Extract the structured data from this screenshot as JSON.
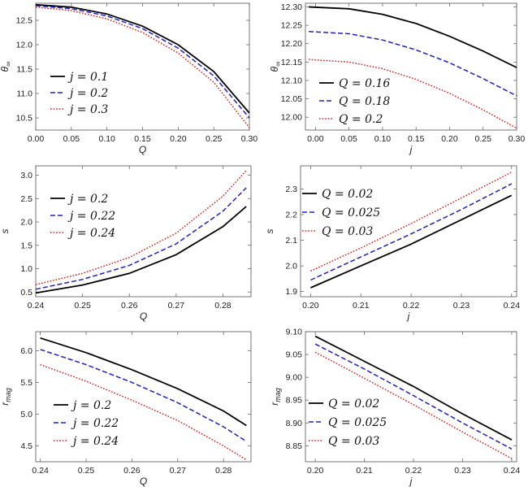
{
  "chart_data": [
    {
      "type": "line",
      "xlabel": "Q",
      "ylabel": "θ∞",
      "xlim": [
        0.0,
        0.3
      ],
      "ylim": [
        10.25,
        12.85
      ],
      "xticks": [
        "0.00",
        "0.05",
        "0.10",
        "0.15",
        "0.20",
        "0.25",
        "0.30"
      ],
      "yticks": [
        "10.5",
        "11.0",
        "11.5",
        "12.0",
        "12.5"
      ],
      "legend_position": "bottom-left",
      "series": [
        {
          "name": "j = 0.1",
          "color": "#000000",
          "style": "solid",
          "x": [
            0.0,
            0.05,
            0.1,
            0.15,
            0.2,
            0.25,
            0.3
          ],
          "y": [
            12.82,
            12.77,
            12.63,
            12.38,
            12.0,
            11.45,
            10.6
          ]
        },
        {
          "name": "j = 0.2",
          "color": "#1f1fcc",
          "style": "dashed",
          "x": [
            0.0,
            0.05,
            0.1,
            0.15,
            0.2,
            0.25,
            0.3
          ],
          "y": [
            12.8,
            12.74,
            12.59,
            12.33,
            11.93,
            11.36,
            10.5
          ]
        },
        {
          "name": "j = 0.3",
          "color": "#e02020",
          "style": "dotted",
          "x": [
            0.0,
            0.05,
            0.1,
            0.15,
            0.2,
            0.25,
            0.3
          ],
          "y": [
            12.77,
            12.7,
            12.53,
            12.25,
            11.83,
            11.23,
            10.3
          ]
        }
      ]
    },
    {
      "type": "line",
      "xlabel": "j",
      "ylabel": "θ∞",
      "xlim": [
        -0.015,
        0.3
      ],
      "ylim": [
        11.965,
        12.31
      ],
      "xticks": [
        "0.00",
        "0.05",
        "0.10",
        "0.15",
        "0.20",
        "0.25",
        "0.30"
      ],
      "yticks": [
        "12.00",
        "12.05",
        "12.10",
        "12.15",
        "12.20",
        "12.25",
        "12.30"
      ],
      "legend_position": "bottom-left",
      "series": [
        {
          "name": "Q = 0.16",
          "color": "#000000",
          "style": "solid",
          "x": [
            -0.01,
            0.05,
            0.1,
            0.15,
            0.2,
            0.25,
            0.3
          ],
          "y": [
            12.3,
            12.295,
            12.28,
            12.255,
            12.22,
            12.18,
            12.135
          ]
        },
        {
          "name": "Q = 0.18",
          "color": "#1f1fcc",
          "style": "dashed",
          "x": [
            -0.01,
            0.05,
            0.1,
            0.15,
            0.2,
            0.25,
            0.3
          ],
          "y": [
            12.233,
            12.227,
            12.21,
            12.183,
            12.148,
            12.105,
            12.058
          ]
        },
        {
          "name": "Q = 0.2",
          "color": "#e02020",
          "style": "dotted",
          "x": [
            -0.01,
            0.05,
            0.1,
            0.15,
            0.2,
            0.25,
            0.3
          ],
          "y": [
            12.157,
            12.15,
            12.132,
            12.103,
            12.065,
            12.02,
            11.97
          ]
        }
      ]
    },
    {
      "type": "line",
      "xlabel": "Q",
      "ylabel": "s",
      "xlim": [
        0.24,
        0.286
      ],
      "ylim": [
        0.4,
        3.2
      ],
      "xticks": [
        "0.24",
        "0.25",
        "0.26",
        "0.27",
        "0.28"
      ],
      "yticks": [
        "0.5",
        "1.0",
        "1.5",
        "2.0",
        "2.5",
        "3.0"
      ],
      "legend_position": "top-left",
      "series": [
        {
          "name": "j = 0.2",
          "color": "#000000",
          "style": "solid",
          "x": [
            0.24,
            0.25,
            0.26,
            0.27,
            0.28,
            0.285
          ],
          "y": [
            0.48,
            0.65,
            0.9,
            1.3,
            1.9,
            2.33
          ]
        },
        {
          "name": "j = 0.22",
          "color": "#1f1fcc",
          "style": "dashed",
          "x": [
            0.24,
            0.25,
            0.26,
            0.27,
            0.28,
            0.285
          ],
          "y": [
            0.56,
            0.77,
            1.07,
            1.53,
            2.23,
            2.73
          ]
        },
        {
          "name": "j = 0.24",
          "color": "#e02020",
          "style": "dotted",
          "x": [
            0.24,
            0.25,
            0.26,
            0.27,
            0.28,
            0.285
          ],
          "y": [
            0.66,
            0.9,
            1.24,
            1.76,
            2.55,
            3.1
          ]
        }
      ]
    },
    {
      "type": "line",
      "xlabel": "j",
      "ylabel": "s",
      "xlim": [
        0.198,
        0.241
      ],
      "ylim": [
        1.88,
        2.39
      ],
      "xticks": [
        "0.20",
        "0.21",
        "0.22",
        "0.23",
        "0.24"
      ],
      "yticks": [
        "1.9",
        "2.0",
        "2.1",
        "2.2",
        "2.3"
      ],
      "legend_position": "top-left",
      "series": [
        {
          "name": "Q = 0.02",
          "color": "#000000",
          "style": "solid",
          "x": [
            0.2,
            0.21,
            0.22,
            0.23,
            0.24
          ],
          "y": [
            1.915,
            2.0,
            2.085,
            2.18,
            2.275
          ]
        },
        {
          "name": "Q = 0.025",
          "color": "#1f1fcc",
          "style": "dashed",
          "x": [
            0.2,
            0.21,
            0.22,
            0.23,
            0.24
          ],
          "y": [
            1.945,
            2.035,
            2.125,
            2.22,
            2.32
          ]
        },
        {
          "name": "Q = 0.03",
          "color": "#e02020",
          "style": "dotted",
          "x": [
            0.2,
            0.21,
            0.22,
            0.23,
            0.24
          ],
          "y": [
            1.98,
            2.07,
            2.165,
            2.265,
            2.365
          ]
        }
      ]
    },
    {
      "type": "line",
      "xlabel": "Q",
      "ylabel": "r_mag",
      "xlim": [
        0.239,
        0.286
      ],
      "ylim": [
        4.25,
        6.3
      ],
      "xticks": [
        "0.24",
        "0.25",
        "0.26",
        "0.27",
        "0.28"
      ],
      "yticks": [
        "4.5",
        "5.0",
        "5.5",
        "6.0"
      ],
      "legend_position": "bottom-left",
      "series": [
        {
          "name": "j = 0.2",
          "color": "#000000",
          "style": "solid",
          "x": [
            0.24,
            0.25,
            0.26,
            0.27,
            0.28,
            0.285
          ],
          "y": [
            6.2,
            5.97,
            5.7,
            5.4,
            5.05,
            4.82
          ]
        },
        {
          "name": "j = 0.22",
          "color": "#1f1fcc",
          "style": "dashed",
          "x": [
            0.24,
            0.25,
            0.26,
            0.27,
            0.28,
            0.285
          ],
          "y": [
            6.02,
            5.78,
            5.5,
            5.18,
            4.8,
            4.57
          ]
        },
        {
          "name": "j = 0.24",
          "color": "#e02020",
          "style": "dotted",
          "x": [
            0.24,
            0.25,
            0.26,
            0.27,
            0.28,
            0.285
          ],
          "y": [
            5.78,
            5.52,
            5.22,
            4.9,
            4.5,
            4.28
          ]
        }
      ]
    },
    {
      "type": "line",
      "xlabel": "j",
      "ylabel": "r_mag",
      "xlim": [
        0.198,
        0.241
      ],
      "ylim": [
        8.815,
        9.1
      ],
      "xticks": [
        "0.20",
        "0.21",
        "0.22",
        "0.23",
        "0.24"
      ],
      "yticks": [
        "8.85",
        "8.90",
        "8.95",
        "9.00",
        "9.05",
        "9.10"
      ],
      "legend_position": "bottom-left",
      "series": [
        {
          "name": "Q = 0.02",
          "color": "#000000",
          "style": "solid",
          "x": [
            0.2,
            0.21,
            0.22,
            0.23,
            0.24
          ],
          "y": [
            9.09,
            9.035,
            8.98,
            8.92,
            8.863
          ]
        },
        {
          "name": "Q = 0.025",
          "color": "#1f1fcc",
          "style": "dashed",
          "x": [
            0.2,
            0.21,
            0.22,
            0.23,
            0.24
          ],
          "y": [
            9.073,
            9.018,
            8.96,
            8.9,
            8.843
          ]
        },
        {
          "name": "Q = 0.03",
          "color": "#e02020",
          "style": "dotted",
          "x": [
            0.2,
            0.21,
            0.22,
            0.23,
            0.24
          ],
          "y": [
            9.055,
            8.998,
            8.94,
            8.88,
            8.822
          ]
        }
      ]
    }
  ]
}
